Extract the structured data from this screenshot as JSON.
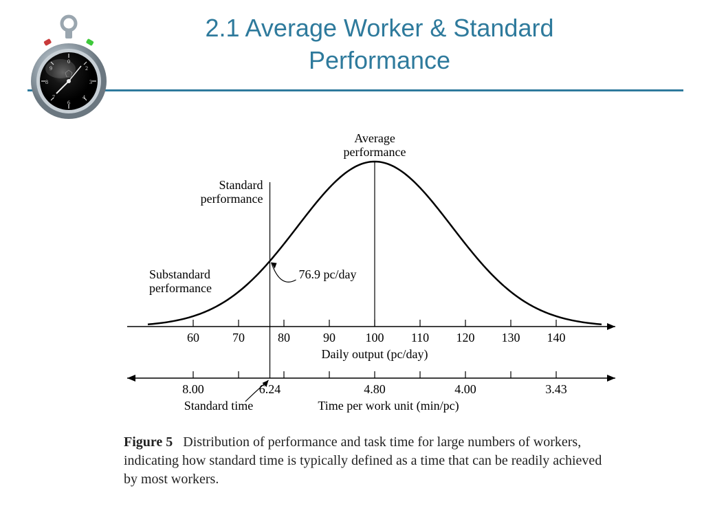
{
  "header": {
    "title_line1": "2.1 Average Worker & Standard",
    "title_line2": "Performance",
    "title_color": "#2e7a9c",
    "underline_color": "#2e7a9c"
  },
  "stopwatch": {
    "body_color": "#9aa6af",
    "face_color": "#0a0a0a",
    "highlight_color": "#e8eef2",
    "left_button": "#c93a3a",
    "right_button": "#3ec93a"
  },
  "chart": {
    "type": "bell-curve",
    "curve_color": "#000000",
    "curve_stroke_width": 2.5,
    "axis_color": "#000000",
    "label_color": "#000000",
    "label_fontsize": 18,
    "tick_fontsize": 18,
    "background_color": "#ffffff",
    "mean_x": 100,
    "xlim": [
      50,
      150
    ],
    "x_ticks": [
      60,
      70,
      80,
      90,
      100,
      110,
      120,
      130,
      140
    ],
    "x_label": "Daily output (pc/day)",
    "second_axis_label": "Time per work unit (min/pc)",
    "second_axis_ticks": [
      {
        "x": 60,
        "label": "8.00"
      },
      {
        "x": 76.9,
        "label": "6.24"
      },
      {
        "x": 100,
        "label": "4.80"
      },
      {
        "x": 120,
        "label": "4.00"
      },
      {
        "x": 140,
        "label": "3.43"
      }
    ],
    "annotations": {
      "average_performance": {
        "text": "Average\nperformance",
        "at_x": 100
      },
      "standard_performance": {
        "text": "Standard\nperformance",
        "at_x": 76.9
      },
      "substandard_performance": {
        "text": "Substandard\nperformance",
        "at_x": 56
      },
      "standard_value": "76.9 pc/day",
      "standard_time_label": "Standard time"
    },
    "vertical_lines": [
      76.9,
      100
    ]
  },
  "caption": {
    "figure_label": "Figure 5",
    "text": "Distribution of performance and task time for large numbers of workers, indicating how standard time is typically defined as a time that can be readily achieved by most workers."
  }
}
